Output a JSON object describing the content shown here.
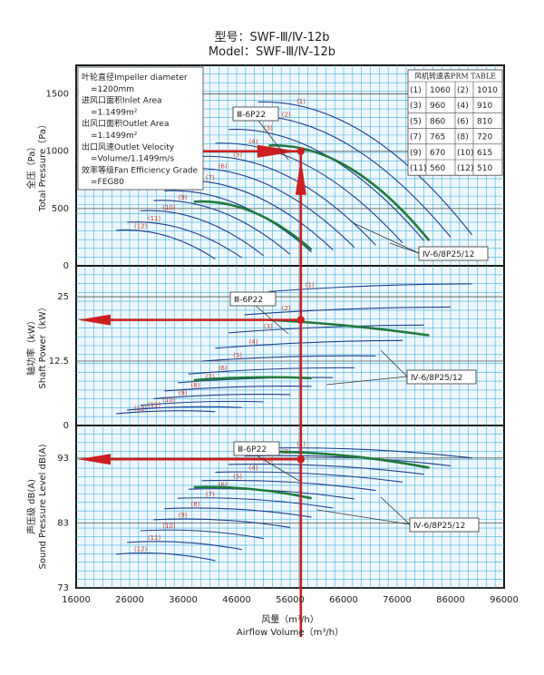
{
  "header": {
    "model_cn": "型号：SWF-Ⅲ/Ⅳ-12b",
    "model_en": "Model：SWF-Ⅲ/Ⅳ-12b"
  },
  "info_box": {
    "lines": [
      "叶轮直径Impeller diameter",
      "=1200mm",
      "进风口面积Inlet Area",
      "=1.1499m²",
      "出风口面积Outlet Area",
      "=1.1499m²",
      "出口风速Outlet Velocity",
      "=Volume/1.1499m/s",
      "效率等级Fan Efficiency Grade",
      "=FEG80"
    ]
  },
  "rpm_table": {
    "title": "风机转速表PRM TABLE",
    "rows": [
      [
        "(1)",
        "1060",
        "(2)",
        "1010"
      ],
      [
        "(3)",
        "960",
        "(4)",
        "910"
      ],
      [
        "(5)",
        "860",
        "(6)",
        "810"
      ],
      [
        "(7)",
        "765",
        "(8)",
        "720"
      ],
      [
        "(9)",
        "670",
        "(10)",
        "615"
      ],
      [
        "(11)",
        "560",
        "(12)",
        "510"
      ]
    ]
  },
  "callouts": {
    "p3": "Ⅲ-6P22",
    "p4": "Ⅳ-6/8P25/12"
  },
  "colors": {
    "grid": "#3fb0e0",
    "panel_bg": "#eef7fb",
    "curve": "#1f3f8f",
    "highlight_curve": "#1f7a3a",
    "marker": "#cc1f1f",
    "curve_label": "#c0392b"
  },
  "chart_data": [
    {
      "type": "line",
      "panel": "pressure",
      "ylabel_cn": "全压（Pa）",
      "ylabel_en": "Total Pressure（Pa）",
      "xlim": [
        16000,
        96000
      ],
      "ylim": [
        0,
        1750
      ],
      "yticks": [
        "0",
        "500",
        "1000",
        "1500"
      ],
      "ytick_values": [
        0,
        500,
        1000,
        1500
      ],
      "operating_point": {
        "x": 58000,
        "y": 1000
      },
      "series": [
        {
          "name": "(1)",
          "x0": 50000,
          "x1": 90000,
          "y0": 1430,
          "y1": 270,
          "green": false
        },
        {
          "name": "(2)",
          "x0": 47500,
          "x1": 86000,
          "y0": 1310,
          "y1": 250,
          "green": false
        },
        {
          "name": "(3)",
          "x0": 44500,
          "x1": 81000,
          "y0": 1190,
          "y1": 220,
          "green": false
        },
        {
          "name": "(4)",
          "x0": 42000,
          "x1": 77000,
          "y0": 1070,
          "y1": 200,
          "green": false
        },
        {
          "name": "(5)",
          "x0": 39500,
          "x1": 72000,
          "y0": 955,
          "y1": 180,
          "green": false
        },
        {
          "name": "(6)",
          "x0": 37000,
          "x1": 68000,
          "y0": 850,
          "y1": 160,
          "green": false
        },
        {
          "name": "(7)",
          "x0": 35000,
          "x1": 64000,
          "y0": 745,
          "y1": 140,
          "green": false
        },
        {
          "name": "(8)",
          "x0": 32500,
          "x1": 60000,
          "y0": 655,
          "y1": 120,
          "green": false
        },
        {
          "name": "(9)",
          "x0": 30500,
          "x1": 56000,
          "y0": 570,
          "y1": 100,
          "green": false
        },
        {
          "name": "(10)",
          "x0": 28000,
          "x1": 51000,
          "y0": 480,
          "y1": 90,
          "green": false
        },
        {
          "name": "(11)",
          "x0": 25500,
          "x1": 47000,
          "y0": 380,
          "y1": 70,
          "green": false
        },
        {
          "name": "(12)",
          "x0": 23500,
          "x1": 42000,
          "y0": 310,
          "y1": 60,
          "green": false
        },
        {
          "name": "",
          "x0": 52000,
          "x1": 82000,
          "y0": 1050,
          "y1": 220,
          "green": true
        },
        {
          "name": "",
          "x0": 38000,
          "x1": 60000,
          "y0": 560,
          "y1": 140,
          "green": true
        }
      ]
    },
    {
      "type": "line",
      "panel": "power",
      "ylabel_cn": "轴功率（kW）",
      "ylabel_en": "Shaft Power（kW）",
      "xlim": [
        16000,
        96000
      ],
      "ylim": [
        0,
        31
      ],
      "yticks": [
        "0",
        "12.5",
        "25"
      ],
      "ytick_values": [
        0,
        12.5,
        25
      ],
      "operating_point": {
        "x": 58000,
        "y": 20.5
      },
      "series": [
        {
          "name": "(1)",
          "x0": 52000,
          "x1": 90000,
          "y0": 26,
          "y1": 27.5,
          "green": false
        },
        {
          "name": "(2)",
          "x0": 47500,
          "x1": 86000,
          "y0": 21.5,
          "y1": 23,
          "green": false
        },
        {
          "name": "(3)",
          "x0": 44500,
          "x1": 81000,
          "y0": 18,
          "y1": 19.5,
          "green": false
        },
        {
          "name": "(4)",
          "x0": 42000,
          "x1": 77000,
          "y0": 15,
          "y1": 16.5,
          "green": false
        },
        {
          "name": "(5)",
          "x0": 39500,
          "x1": 72000,
          "y0": 12.5,
          "y1": 13.5,
          "green": false
        },
        {
          "name": "(6)",
          "x0": 37000,
          "x1": 68000,
          "y0": 10,
          "y1": 11.2,
          "green": false
        },
        {
          "name": "(7)",
          "x0": 35000,
          "x1": 64000,
          "y0": 8.3,
          "y1": 9.3,
          "green": false
        },
        {
          "name": "(8)",
          "x0": 32500,
          "x1": 60000,
          "y0": 6.7,
          "y1": 7.6,
          "green": false
        },
        {
          "name": "(9)",
          "x0": 30500,
          "x1": 56000,
          "y0": 5.2,
          "y1": 6,
          "green": false
        },
        {
          "name": "(10)",
          "x0": 28000,
          "x1": 51000,
          "y0": 3.9,
          "y1": 4.6,
          "green": false
        },
        {
          "name": "(11)",
          "x0": 25500,
          "x1": 47000,
          "y0": 3,
          "y1": 3.5,
          "green": false
        },
        {
          "name": "(12)",
          "x0": 23500,
          "x1": 42000,
          "y0": 2.3,
          "y1": 2.7,
          "green": false
        },
        {
          "name": "",
          "x0": 52000,
          "x1": 82000,
          "y0": 20.5,
          "y1": 17.5,
          "green": true
        },
        {
          "name": "",
          "x0": 38000,
          "x1": 60000,
          "y0": 8.8,
          "y1": 9.2,
          "green": true
        }
      ]
    },
    {
      "type": "line",
      "panel": "noise",
      "ylabel_cn": "声压级 dB(A)",
      "ylabel_en": "Sound Pressure Level dB(A)",
      "xlim": [
        16000,
        96000
      ],
      "xticks": [
        "16000",
        "26000",
        "36000",
        "46000",
        "56000",
        "66000",
        "76000",
        "86000",
        "96000"
      ],
      "xtick_values": [
        16000,
        26000,
        36000,
        46000,
        56000,
        66000,
        76000,
        86000,
        96000
      ],
      "xlabel_cn": "风量（m³/h）",
      "xlabel_en": "Airflow  Volume（m³/h）",
      "ylim": [
        73,
        98
      ],
      "yticks": [
        "73",
        "83",
        "93"
      ],
      "ytick_values": [
        73,
        83,
        93
      ],
      "operating_point": {
        "x": 58000,
        "y": 92.8
      },
      "series": [
        {
          "name": "(1)",
          "x0": 50000,
          "x1": 90000,
          "y0": 94.5,
          "y1": 93,
          "green": false
        },
        {
          "name": "(2)",
          "x0": 47500,
          "x1": 86000,
          "y0": 93.3,
          "y1": 91.8,
          "green": false
        },
        {
          "name": "(3)",
          "x0": 44500,
          "x1": 81000,
          "y0": 92,
          "y1": 90.5,
          "green": false
        },
        {
          "name": "(4)",
          "x0": 42000,
          "x1": 77000,
          "y0": 90.8,
          "y1": 89.3,
          "green": false
        },
        {
          "name": "(5)",
          "x0": 39500,
          "x1": 72000,
          "y0": 89.5,
          "y1": 88,
          "green": false
        },
        {
          "name": "(6)",
          "x0": 37000,
          "x1": 68000,
          "y0": 88.2,
          "y1": 86.7,
          "green": false
        },
        {
          "name": "(7)",
          "x0": 35000,
          "x1": 64000,
          "y0": 86.8,
          "y1": 85.3,
          "green": false
        },
        {
          "name": "(8)",
          "x0": 32500,
          "x1": 60000,
          "y0": 85.2,
          "y1": 83.9,
          "green": false
        },
        {
          "name": "(9)",
          "x0": 30500,
          "x1": 56000,
          "y0": 83.5,
          "y1": 82.3,
          "green": false
        },
        {
          "name": "(10)",
          "x0": 28000,
          "x1": 51000,
          "y0": 81.8,
          "y1": 80.6,
          "green": false
        },
        {
          "name": "(11)",
          "x0": 25500,
          "x1": 47000,
          "y0": 80,
          "y1": 78.9,
          "green": false
        },
        {
          "name": "(12)",
          "x0": 23500,
          "x1": 42000,
          "y0": 78.2,
          "y1": 77.2,
          "green": false
        },
        {
          "name": "",
          "x0": 52000,
          "x1": 82000,
          "y0": 94,
          "y1": 91.5,
          "green": true
        },
        {
          "name": "",
          "x0": 38000,
          "x1": 60000,
          "y0": 88.5,
          "y1": 86.8,
          "green": true
        }
      ]
    }
  ]
}
